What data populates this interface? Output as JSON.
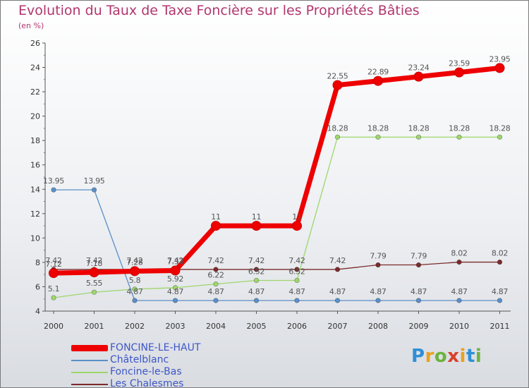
{
  "title": "Evolution du Taux de Taxe Foncière sur les Propriétés Bâties",
  "unit_label": "(en %)",
  "logo_text": "Proxiti",
  "logo_colors": [
    "#2f8fd6",
    "#e8a21f",
    "#6cb33f",
    "#d9412c",
    "#e8a21f",
    "#2f8fd6",
    "#6cb33f"
  ],
  "chart_data": {
    "type": "line",
    "title": "Evolution du Taux de Taxe Foncière sur les Propriétés Bâties",
    "xlabel": "",
    "ylabel": "(en %)",
    "ylim": [
      4,
      26
    ],
    "yticks": [
      4,
      6,
      8,
      10,
      12,
      14,
      16,
      18,
      20,
      22,
      24,
      26
    ],
    "categories": [
      "2000",
      "2001",
      "2002",
      "2003",
      "2004",
      "2005",
      "2006",
      "2007",
      "2008",
      "2009",
      "2010",
      "2011"
    ],
    "series": [
      {
        "name": "Les Chalesmes",
        "color": "#7b2b2b",
        "labels": [
          "7.42",
          "7.42",
          "7.42",
          "7.42",
          "7.42",
          "7.42",
          "7.42",
          "7.42",
          "7.79",
          "7.79",
          "8.02",
          "8.02"
        ],
        "values": [
          7.42,
          7.42,
          7.42,
          7.42,
          7.42,
          7.42,
          7.42,
          7.42,
          7.79,
          7.79,
          8.02,
          8.02
        ]
      },
      {
        "name": "Foncine-le-Bas",
        "color": "#9ed66c",
        "labels": [
          "5.1",
          "5.55",
          "5.8",
          "5.92",
          "6.22",
          "6.52",
          "6.52",
          "18.28",
          "18.28",
          "18.28",
          "18.28",
          "18.28"
        ],
        "values": [
          5.1,
          5.55,
          5.8,
          5.92,
          6.22,
          6.52,
          6.52,
          18.28,
          18.28,
          18.28,
          18.28,
          18.28
        ]
      },
      {
        "name": "Châtelblanc",
        "color": "#5b8fc7",
        "labels": [
          "13.95",
          "13.95",
          "4.87",
          "4.87",
          "4.87",
          "4.87",
          "4.87",
          "4.87",
          "4.87",
          "4.87",
          "4.87",
          "4.87"
        ],
        "values": [
          13.95,
          13.95,
          4.87,
          4.87,
          4.87,
          4.87,
          4.87,
          4.87,
          4.87,
          4.87,
          4.87,
          4.87
        ]
      },
      {
        "name": "FONCINE-LE-HAUT",
        "color": "#ee0000",
        "labels": [
          "7.12",
          "7.18",
          "7.28",
          "7.33",
          "11",
          "11",
          "11",
          "22.55",
          "22.89",
          "23.24",
          "23.59",
          "23.95"
        ],
        "values": [
          7.12,
          7.18,
          7.28,
          7.33,
          11,
          11,
          11,
          22.55,
          22.89,
          23.24,
          23.59,
          23.95
        ]
      }
    ],
    "legend_order": [
      "FONCINE-LE-HAUT",
      "Châtelblanc",
      "Foncine-le-Bas",
      "Les Chalesmes"
    ],
    "grid": false,
    "legend_position": "bottom-left"
  }
}
